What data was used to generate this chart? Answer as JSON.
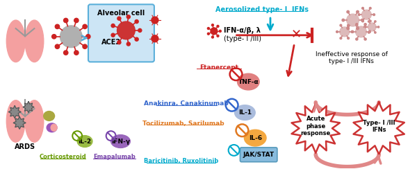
{
  "bg_color": "#ffffff",
  "fig_width": 6.0,
  "fig_height": 2.44,
  "alveolar_box_color": "#cce5f5",
  "alveolar_box_edge": "#5aafda",
  "text_alveolar_cell": "Alveolar cell",
  "text_ace2": "ACE2",
  "text_ards": "ARDS",
  "text_aerosolized": "Aerosolized type- I  IFNs",
  "text_ifn_ab": "IFN-α/β, λ",
  "text_type_I_III": "(type- I /III)",
  "text_etanercept": "Etanercept",
  "text_tnf": "TNF-α",
  "text_anakinra": "Anakinra, Canakinumab",
  "text_il1": "IL-1",
  "text_tocilizumab": "Tocilizumab, Sarilumab",
  "text_il6": "IL-6",
  "text_jak": "JAK/STAT",
  "text_il2": "IL-2",
  "text_ifng": "IFN-γ",
  "text_corticosteroid": "Corticosteroid",
  "text_emapalumab": "Emapalumab",
  "text_baricitinib": "Baricitinib, Ruxolitinib",
  "text_ineffective": "Ineffective response of\ntype- I /III IFNs",
  "text_acute": "Acute\nphase\nresponse",
  "text_type_ifns": "Type- I /III\nIFNs",
  "color_cyan": "#00aacc",
  "color_red": "#cc2222",
  "color_orange": "#e07820",
  "color_blue": "#3366cc",
  "color_green": "#669900",
  "color_purple": "#7744aa",
  "color_pink_arrow": "#e08888",
  "color_dark_red": "#cc3333",
  "lung_color": "#f4a0a0",
  "il1_color": "#aabcdd",
  "il6_color": "#f4a840",
  "tnf_color": "#e08080",
  "il2_color": "#99bb44",
  "ifng_color": "#9966bb",
  "jak_color": "#88bbdd",
  "no_sign_color_green": "#669900",
  "no_sign_color_orange": "#e07820",
  "no_sign_color_blue": "#3366cc",
  "no_sign_color_purple": "#7744aa",
  "no_sign_color_cyan": "#00aacc",
  "no_sign_color_red": "#cc2222"
}
